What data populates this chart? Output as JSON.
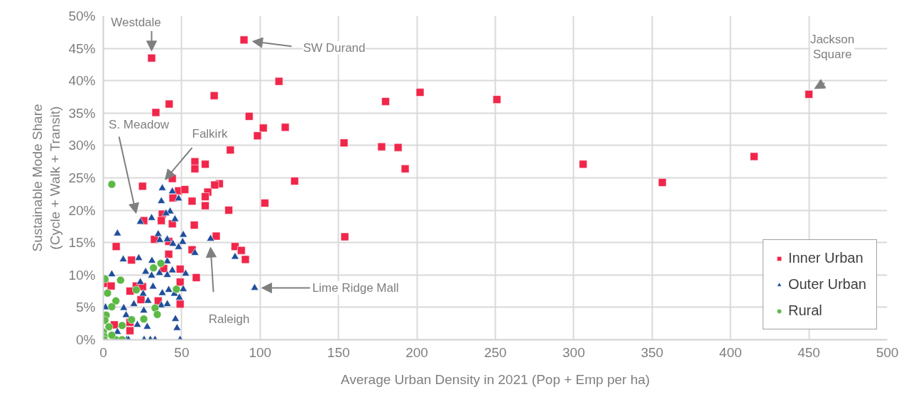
{
  "chart_data": {
    "type": "scatter",
    "xlabel": "Average Urban Density in 2021 (Pop + Emp per ha)",
    "ylabel": "Sustainable Mode Share\n(Cycle + Walk + Transit)",
    "xlim": [
      0,
      500
    ],
    "xticks": [
      0,
      50,
      100,
      150,
      200,
      250,
      300,
      350,
      400,
      450,
      500
    ],
    "ylim": [
      0,
      50
    ],
    "yticks": [
      {
        "value": 0,
        "label": "0%"
      },
      {
        "value": 5,
        "label": "5%"
      },
      {
        "value": 10,
        "label": "10%"
      },
      {
        "value": 15,
        "label": "15%"
      },
      {
        "value": 20,
        "label": "20%"
      },
      {
        "value": 25,
        "label": "25%"
      },
      {
        "value": 30,
        "label": "30%"
      },
      {
        "value": 35,
        "label": "35%"
      },
      {
        "value": 40,
        "label": "40%"
      },
      {
        "value": 45,
        "label": "45%"
      },
      {
        "value": 50,
        "label": "50%"
      }
    ],
    "grid": true,
    "legend": "bottom right",
    "series": [
      {
        "name": "Inner Urban",
        "color": "#f0264a",
        "marker": "square",
        "x": [
          30.8,
          89.7,
          33.5,
          42,
          70.7,
          112,
          93,
          102,
          98.3,
          116,
          81,
          58.4,
          58.4,
          65,
          44,
          74,
          71,
          66.6,
          65,
          65,
          80,
          103,
          122,
          202,
          251,
          180,
          153.5,
          177.5,
          188,
          192.5,
          306,
          154,
          356.5,
          415,
          450,
          72,
          84,
          88,
          90.6,
          25,
          48,
          52,
          56.6,
          44.4,
          37.6,
          37,
          44,
          25.8,
          58,
          32.6,
          41.7,
          56.6,
          8.2,
          41.7,
          18,
          38.5,
          49,
          59.3,
          49,
          1,
          5,
          21,
          25,
          17,
          24,
          35,
          49,
          17,
          7,
          17
        ],
        "values": [
          43.5,
          46.3,
          35.1,
          36.4,
          37.7,
          39.9,
          34.5,
          32.7,
          31.5,
          32.8,
          29.3,
          27.5,
          26.4,
          27.1,
          24.9,
          24.1,
          23.9,
          22.8,
          22.1,
          20.7,
          20,
          21.1,
          24.5,
          38.2,
          37.1,
          36.8,
          30.4,
          29.8,
          29.7,
          26.4,
          27.1,
          15.9,
          24.3,
          28.3,
          37.9,
          16,
          14.4,
          13.8,
          12.4,
          23.7,
          23,
          23.2,
          21.4,
          21.9,
          19.4,
          18.4,
          17.9,
          18.4,
          17.7,
          15.5,
          15.2,
          13.9,
          14.4,
          13.2,
          12.3,
          11,
          10.9,
          9.6,
          8.9,
          8.7,
          8.3,
          8.3,
          8.2,
          7.5,
          6.2,
          6,
          5.5,
          2.7,
          2.3,
          1.4
        ]
      },
      {
        "name": "Outer Urban",
        "color": "#1f4e9b",
        "marker": "triangle",
        "x": [
          37.6,
          44,
          48,
          37,
          42.6,
          40,
          23.6,
          30.8,
          45.7,
          9,
          35,
          40.8,
          36,
          51,
          50.6,
          44.4,
          48,
          58.4,
          12.7,
          22.6,
          31,
          40.8,
          27,
          30.8,
          35.8,
          40.8,
          44,
          52.5,
          5.4,
          23.6,
          31.7,
          37.6,
          41.7,
          51,
          45.3,
          48.5,
          25.4,
          19.5,
          28.5,
          25.8,
          1.4,
          13,
          14.5,
          37,
          40.8,
          46,
          47,
          9,
          21.7,
          28,
          15,
          26,
          30,
          33,
          49,
          16,
          68.4,
          84,
          96.5
        ],
        "values": [
          23.4,
          22.9,
          21.8,
          21.4,
          19.8,
          19.5,
          18.2,
          18.8,
          18.6,
          16.4,
          16.3,
          15.5,
          15.4,
          16.2,
          15.1,
          14.8,
          14.3,
          13.4,
          12.4,
          12.6,
          12.2,
          12.1,
          10.5,
          9.9,
          10.3,
          10,
          10.7,
          10.2,
          10.1,
          8.9,
          8.2,
          7.2,
          7.7,
          7.8,
          7.1,
          6.5,
          7.1,
          5.5,
          6,
          4.5,
          5,
          4.9,
          3.8,
          5.3,
          5.5,
          3.2,
          1.8,
          1.2,
          2.3,
          2,
          0,
          0,
          0,
          0,
          0,
          0,
          15.6,
          12.8,
          8
        ]
      },
      {
        "name": "Rural",
        "color": "#5cb946",
        "marker": "circle",
        "x": [
          5.4,
          36.7,
          32,
          1,
          11,
          2.7,
          21,
          46.6,
          8,
          5.4,
          33,
          34.4,
          25.8,
          18,
          1.8,
          1,
          12,
          3.6,
          0,
          0.5,
          8,
          12,
          0.5,
          5.4
        ],
        "values": [
          24,
          11.8,
          11.1,
          9.4,
          9.2,
          7.2,
          7.7,
          7.8,
          6,
          5.1,
          4.9,
          3.9,
          3.2,
          3.1,
          3.8,
          3,
          2.2,
          2,
          1.2,
          0.5,
          0,
          0,
          0,
          0.7
        ]
      }
    ],
    "annotations": [
      {
        "text": "Westdale",
        "x": 30.8,
        "y": 43.5
      },
      "SW Durand",
      {
        "text": "Jackson Square",
        "x": 450,
        "y": 37.9
      },
      "S. Meadow",
      "Falkirk",
      "Raleigh",
      "Lime Ridge Mall"
    ]
  }
}
